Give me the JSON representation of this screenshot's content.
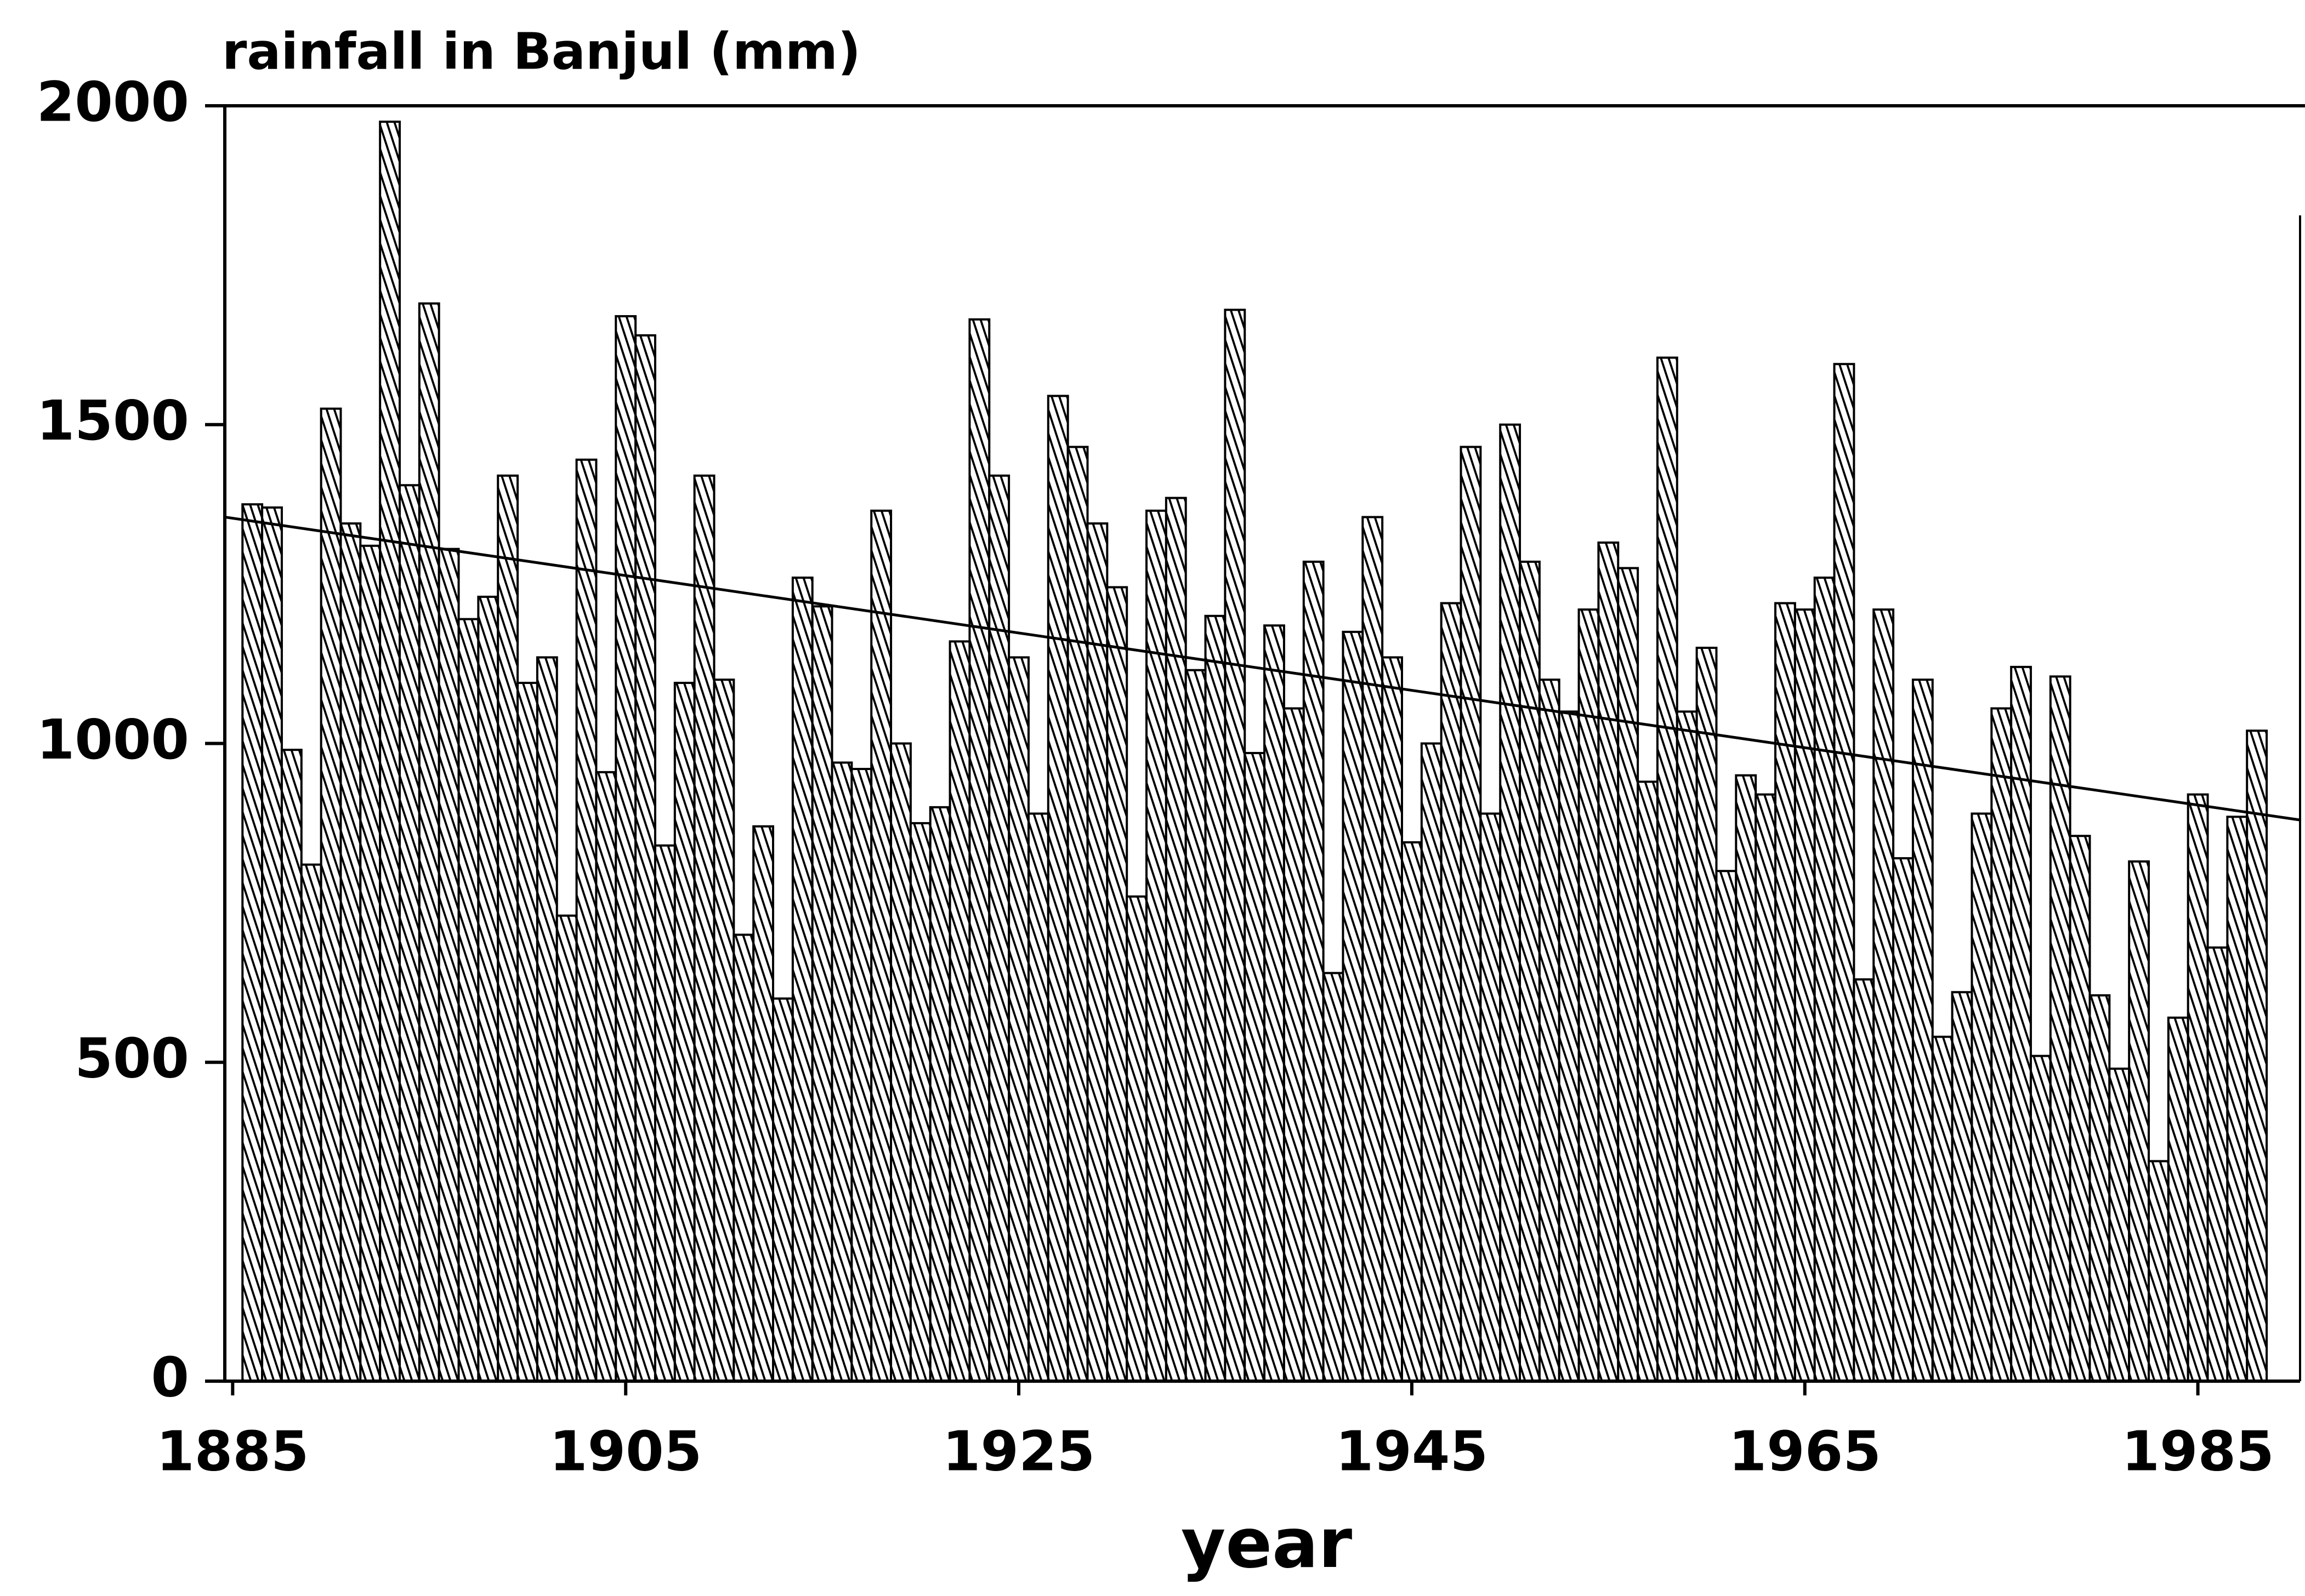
{
  "chart_data": {
    "type": "bar",
    "title": "rainfall in Banjul (mm)",
    "x_label": "year",
    "x": [
      1886,
      1887,
      1888,
      1889,
      1890,
      1891,
      1892,
      1893,
      1894,
      1895,
      1896,
      1897,
      1898,
      1899,
      1900,
      1901,
      1902,
      1903,
      1904,
      1905,
      1906,
      1907,
      1908,
      1909,
      1910,
      1911,
      1912,
      1913,
      1914,
      1915,
      1916,
      1917,
      1918,
      1919,
      1920,
      1921,
      1922,
      1923,
      1924,
      1925,
      1926,
      1927,
      1928,
      1929,
      1930,
      1931,
      1932,
      1933,
      1934,
      1935,
      1936,
      1937,
      1938,
      1939,
      1940,
      1941,
      1942,
      1943,
      1944,
      1945,
      1946,
      1947,
      1948,
      1949,
      1950,
      1951,
      1952,
      1953,
      1954,
      1955,
      1956,
      1957,
      1958,
      1959,
      1960,
      1961,
      1962,
      1963,
      1964,
      1965,
      1966,
      1967,
      1968,
      1969,
      1970,
      1971,
      1972,
      1973,
      1974,
      1975,
      1976,
      1977,
      1978,
      1979,
      1980,
      1981,
      1982,
      1983,
      1984,
      1985,
      1986,
      1987,
      1988
    ],
    "values": [
      1375,
      1370,
      990,
      810,
      1525,
      1345,
      1310,
      1975,
      1405,
      1690,
      1305,
      1195,
      1230,
      1420,
      1095,
      1135,
      730,
      1445,
      955,
      1670,
      1640,
      840,
      1095,
      1420,
      1100,
      700,
      870,
      600,
      1260,
      1215,
      970,
      960,
      1365,
      1000,
      875,
      900,
      1160,
      1665,
      1420,
      1135,
      890,
      1545,
      1465,
      1345,
      1245,
      760,
      1365,
      1385,
      1115,
      1200,
      1680,
      985,
      1185,
      1055,
      1285,
      640,
      1175,
      1355,
      1135,
      845,
      1000,
      1220,
      1465,
      890,
      1500,
      1285,
      1100,
      1050,
      1210,
      1315,
      1275,
      940,
      1605,
      1050,
      1150,
      800,
      950,
      920,
      1220,
      1210,
      1260,
      1595,
      630,
      1210,
      820,
      1100,
      540,
      610,
      890,
      1055,
      1120,
      510,
      1105,
      855,
      605,
      490,
      815,
      345,
      570,
      920,
      680,
      885,
      1020
    ],
    "trend_line": {
      "x": [
        1884.6,
        1990.2
      ],
      "values": [
        1355,
        880
      ]
    },
    "xlim": [
      1884.6,
      1990.2
    ],
    "xticks": [
      1885,
      1905,
      1925,
      1945,
      1965,
      1985
    ],
    "ylim": [
      0,
      2000
    ],
    "yticks": [
      0,
      500,
      1000,
      1500,
      2000
    ]
  }
}
